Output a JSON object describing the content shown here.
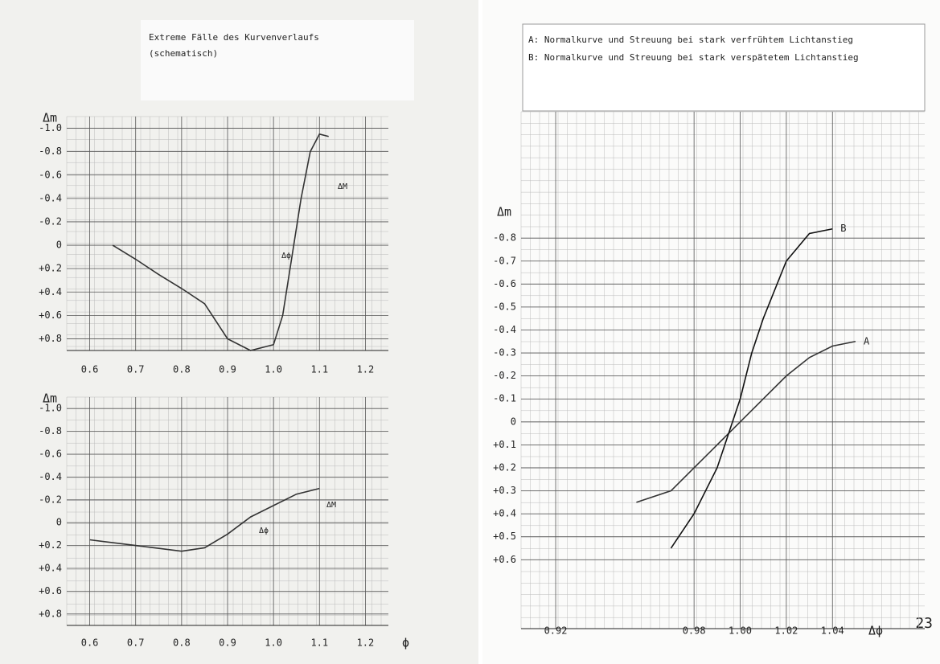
{
  "chart_data": [
    {
      "type": "line",
      "title": "Extreme Fälle des Kurvenverlaufs",
      "subtitle": "(schematisch)",
      "y_label": "Δm",
      "xlim": [
        0.55,
        1.25
      ],
      "ylim": [
        0.9,
        -1.1
      ],
      "xticks": [
        0.6,
        0.7,
        0.8,
        0.9,
        {
          "value": 1,
          "label": "1.0"
        },
        1.1,
        1.2
      ],
      "yticks": [
        {
          "value": -1,
          "label": "-1.0"
        },
        {
          "value": -0.8,
          "label": "-0.8"
        },
        {
          "value": -0.6,
          "label": "-0.6"
        },
        {
          "value": -0.4,
          "label": "-0.4"
        },
        {
          "value": -0.2,
          "label": "-0.2"
        },
        0,
        {
          "value": 0.2,
          "label": "+0.2"
        },
        {
          "value": 0.4,
          "label": "+0.4"
        },
        {
          "value": 0.6,
          "label": "+0.6"
        },
        {
          "value": 0.8,
          "label": "+0.8"
        }
      ],
      "grid": true,
      "annotations": [
        "ΔM",
        "Δϕ"
      ],
      "series": [
        {
          "color": "#333333",
          "x": [
            0.65,
            0.7,
            0.75,
            0.8,
            0.85,
            0.9,
            0.95,
            1.0,
            1.02,
            1.04,
            1.06,
            1.08,
            1.1,
            1.12
          ],
          "values": [
            0.0,
            0.12,
            0.25,
            0.37,
            0.5,
            0.8,
            0.9,
            0.85,
            0.6,
            0.1,
            -0.4,
            -0.8,
            -0.95,
            -0.93
          ]
        }
      ]
    },
    {
      "type": "line",
      "y_label": "Δm",
      "x_label": "ϕ",
      "xlim": [
        0.55,
        1.25
      ],
      "ylim": [
        0.9,
        -1.1
      ],
      "xticks": [
        0.6,
        0.7,
        0.8,
        0.9,
        {
          "value": 1,
          "label": "1.0"
        },
        1.1,
        1.2
      ],
      "yticks": [
        {
          "value": -1,
          "label": "-1.0"
        },
        {
          "value": -0.8,
          "label": "-0.8"
        },
        {
          "value": -0.6,
          "label": "-0.6"
        },
        {
          "value": -0.4,
          "label": "-0.4"
        },
        {
          "value": -0.2,
          "label": "-0.2"
        },
        0,
        {
          "value": 0.2,
          "label": "+0.2"
        },
        {
          "value": 0.4,
          "label": "+0.4"
        },
        {
          "value": 0.6,
          "label": "+0.6"
        },
        {
          "value": 0.8,
          "label": "+0.8"
        }
      ],
      "grid": true,
      "annotations": [
        "ΔM",
        "Δϕ"
      ],
      "series": [
        {
          "color": "#333333",
          "x": [
            0.6,
            0.7,
            0.8,
            0.85,
            0.9,
            0.95,
            1.0,
            1.05,
            1.1
          ],
          "values": [
            0.15,
            0.2,
            0.25,
            0.22,
            0.1,
            -0.05,
            -0.15,
            -0.25,
            -0.3
          ]
        }
      ]
    },
    {
      "type": "line",
      "y_label": "Δm",
      "x_label": "Δϕ",
      "notes": [
        "A: Normalkurve und Streuung bei stark verfrühtem Lichtanstieg",
        "B: Normalkurve und Streuung bei stark verspätetem Lichtanstieg"
      ],
      "xlim": [
        0.905,
        1.08
      ],
      "ylim": [
        0.9,
        -1.35
      ],
      "xticks": [
        0.92,
        0.98,
        {
          "value": 1,
          "label": "1.00"
        },
        1.02,
        1.04
      ],
      "yticks": [
        {
          "value": -0.8,
          "label": "-0.8"
        },
        {
          "value": -0.7,
          "label": "-0.7"
        },
        {
          "value": -0.6,
          "label": "-0.6"
        },
        {
          "value": -0.5,
          "label": "-0.5"
        },
        {
          "value": -0.4,
          "label": "-0.4"
        },
        {
          "value": -0.3,
          "label": "-0.3"
        },
        {
          "value": -0.2,
          "label": "-0.2"
        },
        {
          "value": -0.1,
          "label": "-0.1"
        },
        0,
        {
          "value": 0.1,
          "label": "+0.1"
        },
        {
          "value": 0.2,
          "label": "+0.2"
        },
        {
          "value": 0.3,
          "label": "+0.3"
        },
        {
          "value": 0.4,
          "label": "+0.4"
        },
        {
          "value": 0.5,
          "label": "+0.5"
        },
        {
          "value": 0.6,
          "label": "+0.6"
        }
      ],
      "grid": true,
      "series": [
        {
          "name": "A",
          "color": "#333333",
          "x": [
            0.955,
            0.97,
            0.98,
            0.99,
            1.0,
            1.01,
            1.02,
            1.03,
            1.04,
            1.05
          ],
          "values": [
            0.35,
            0.3,
            0.2,
            0.1,
            0,
            -0.1,
            -0.2,
            -0.28,
            -0.33,
            -0.35
          ]
        },
        {
          "name": "B",
          "color": "#111111",
          "x": [
            0.97,
            0.98,
            0.99,
            0.995,
            1.0,
            1.005,
            1.01,
            1.02,
            1.03,
            1.04
          ],
          "values": [
            0.55,
            0.4,
            0.2,
            0.05,
            -0.1,
            -0.3,
            -0.45,
            -0.7,
            -0.82,
            -0.84
          ]
        }
      ]
    }
  ],
  "page_number": "23"
}
